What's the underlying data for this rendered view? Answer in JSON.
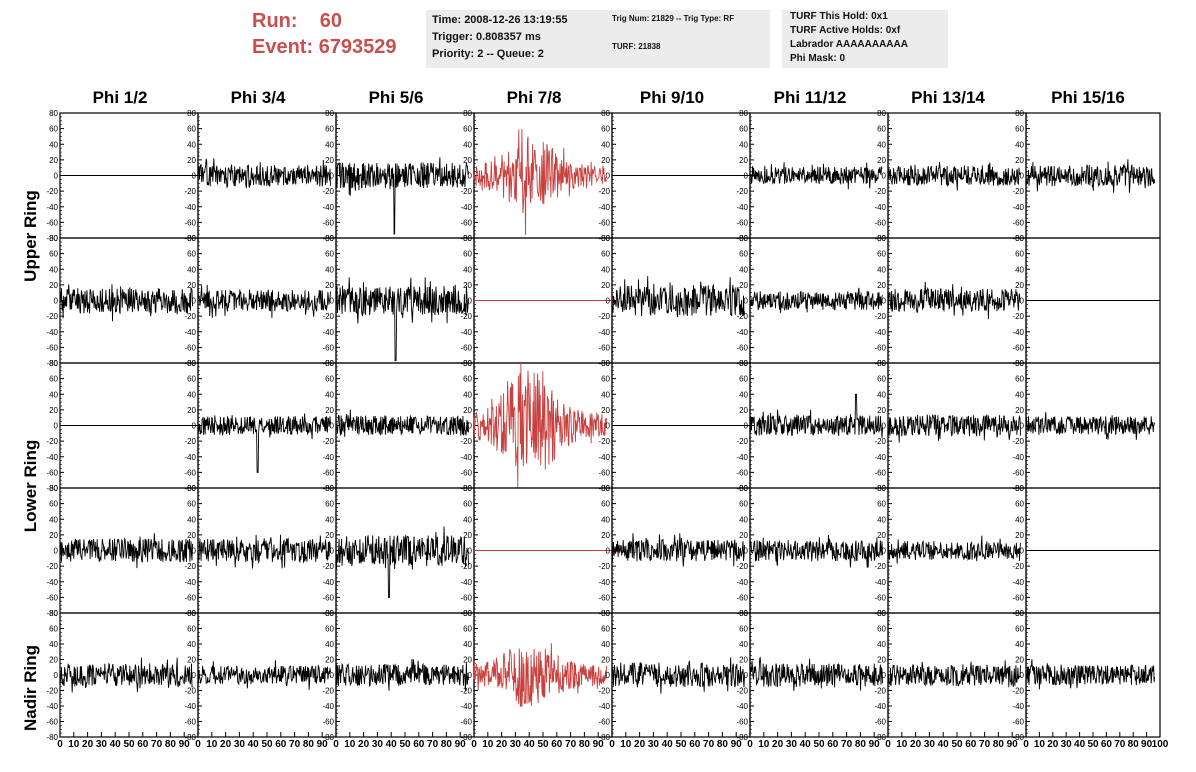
{
  "run": {
    "run_label": "Run:",
    "run_value": "60",
    "event_label": "Event:",
    "event_value": "6793529"
  },
  "info_time": {
    "line1": "Time: 2008-12-26 13:19:55",
    "line2": "Trigger: 0.808357 ms",
    "line3": "Priority: 2 -- Queue: 2"
  },
  "info_trig": {
    "line1": "Trig Num: 21829 -- Trig Type: RF",
    "line2": "TURF: 21838"
  },
  "info_turf": {
    "line1": "TURF This Hold: 0x1",
    "line2": "TURF Active Holds: 0xf",
    "line3": "Labrador AAAAAAAAAA",
    "line4": "Phi Mask: 0"
  },
  "phi_labels": [
    "Phi 1/2",
    "Phi 3/4",
    "Phi 5/6",
    "Phi 7/8",
    "Phi 9/10",
    "Phi 11/12",
    "Phi 13/14",
    "Phi 15/16"
  ],
  "ring_labels": {
    "upper": "Upper Ring",
    "lower": "Lower Ring",
    "nadir": "Nadir Ring"
  },
  "colors": {
    "trace": "#000000",
    "highlight": "#c8413f",
    "label_red": "#c8504e",
    "info_bg": "#ececec"
  },
  "chart_data": {
    "type": "line",
    "title": "",
    "ylim": [
      -80,
      80
    ],
    "xlim": [
      0,
      100
    ],
    "y_ticks": [
      -80,
      -60,
      -40,
      -20,
      0,
      20,
      40,
      60,
      80
    ],
    "x_ticks": [
      0,
      10,
      20,
      30,
      40,
      50,
      60,
      70,
      80,
      90,
      100
    ],
    "columns": [
      "Phi 1/2",
      "Phi 3/4",
      "Phi 5/6",
      "Phi 7/8",
      "Phi 9/10",
      "Phi 11/12",
      "Phi 13/14",
      "Phi 15/16"
    ],
    "rows": [
      "Upper Ring 1",
      "Upper Ring 2",
      "Lower Ring 1",
      "Lower Ring 2",
      "Nadir Ring"
    ],
    "panels": [
      [
        {
          "kind": "flat",
          "color": "black"
        },
        {
          "kind": "noise",
          "amp": 14,
          "seed": 11,
          "color": "black"
        },
        {
          "kind": "noise",
          "amp": 17,
          "seed": 12,
          "color": "black",
          "spike": [
            44,
            -75
          ]
        },
        {
          "kind": "burst",
          "amp": 22,
          "peak": 52,
          "seed": 13,
          "color": "red"
        },
        {
          "kind": "flat",
          "color": "black"
        },
        {
          "kind": "noise",
          "amp": 11,
          "seed": 14,
          "color": "black"
        },
        {
          "kind": "noise",
          "amp": 13,
          "seed": 15,
          "color": "black"
        },
        {
          "kind": "noise",
          "amp": 14,
          "seed": 16,
          "color": "black"
        }
      ],
      [
        {
          "kind": "noise",
          "amp": 17,
          "seed": 21,
          "color": "black"
        },
        {
          "kind": "noise",
          "amp": 14,
          "seed": 22,
          "color": "black"
        },
        {
          "kind": "noise",
          "amp": 19,
          "seed": 23,
          "color": "black",
          "spike": [
            45,
            -77
          ]
        },
        {
          "kind": "flat",
          "color": "red"
        },
        {
          "kind": "noise",
          "amp": 20,
          "seed": 24,
          "color": "black"
        },
        {
          "kind": "noise",
          "amp": 12,
          "seed": 25,
          "color": "black"
        },
        {
          "kind": "noise",
          "amp": 15,
          "seed": 26,
          "color": "black"
        },
        {
          "kind": "flat",
          "color": "black"
        }
      ],
      [
        {
          "kind": "flat",
          "color": "black"
        },
        {
          "kind": "noise",
          "amp": 12,
          "seed": 31,
          "color": "black",
          "spike": [
            45,
            -60
          ]
        },
        {
          "kind": "noise",
          "amp": 13,
          "seed": 32,
          "color": "black"
        },
        {
          "kind": "burst",
          "amp": 28,
          "peak": 75,
          "seed": 33,
          "color": "red"
        },
        {
          "kind": "flat",
          "color": "black"
        },
        {
          "kind": "noise",
          "amp": 13,
          "seed": 34,
          "color": "black",
          "spike": [
            80,
            40
          ]
        },
        {
          "kind": "noise",
          "amp": 14,
          "seed": 35,
          "color": "black"
        },
        {
          "kind": "noise",
          "amp": 12,
          "seed": 36,
          "color": "black"
        }
      ],
      [
        {
          "kind": "noise",
          "amp": 15,
          "seed": 41,
          "color": "black"
        },
        {
          "kind": "noise",
          "amp": 15,
          "seed": 42,
          "color": "black"
        },
        {
          "kind": "noise",
          "amp": 20,
          "seed": 43,
          "color": "black",
          "spike": [
            40,
            -60
          ]
        },
        {
          "kind": "flat",
          "color": "red"
        },
        {
          "kind": "noise",
          "amp": 14,
          "seed": 44,
          "color": "black"
        },
        {
          "kind": "noise",
          "amp": 14,
          "seed": 45,
          "color": "black"
        },
        {
          "kind": "noise",
          "amp": 12,
          "seed": 46,
          "color": "black"
        },
        {
          "kind": "flat",
          "color": "black"
        }
      ],
      [
        {
          "kind": "noise",
          "amp": 15,
          "seed": 51,
          "color": "black"
        },
        {
          "kind": "noise",
          "amp": 12,
          "seed": 52,
          "color": "black"
        },
        {
          "kind": "noise",
          "amp": 14,
          "seed": 53,
          "color": "black"
        },
        {
          "kind": "burst",
          "amp": 24,
          "peak": 45,
          "seed": 54,
          "color": "red"
        },
        {
          "kind": "noise",
          "amp": 16,
          "seed": 55,
          "color": "black"
        },
        {
          "kind": "noise",
          "amp": 15,
          "seed": 56,
          "color": "black"
        },
        {
          "kind": "noise",
          "amp": 14,
          "seed": 57,
          "color": "black"
        },
        {
          "kind": "noise",
          "amp": 13,
          "seed": 58,
          "color": "black"
        }
      ]
    ]
  }
}
